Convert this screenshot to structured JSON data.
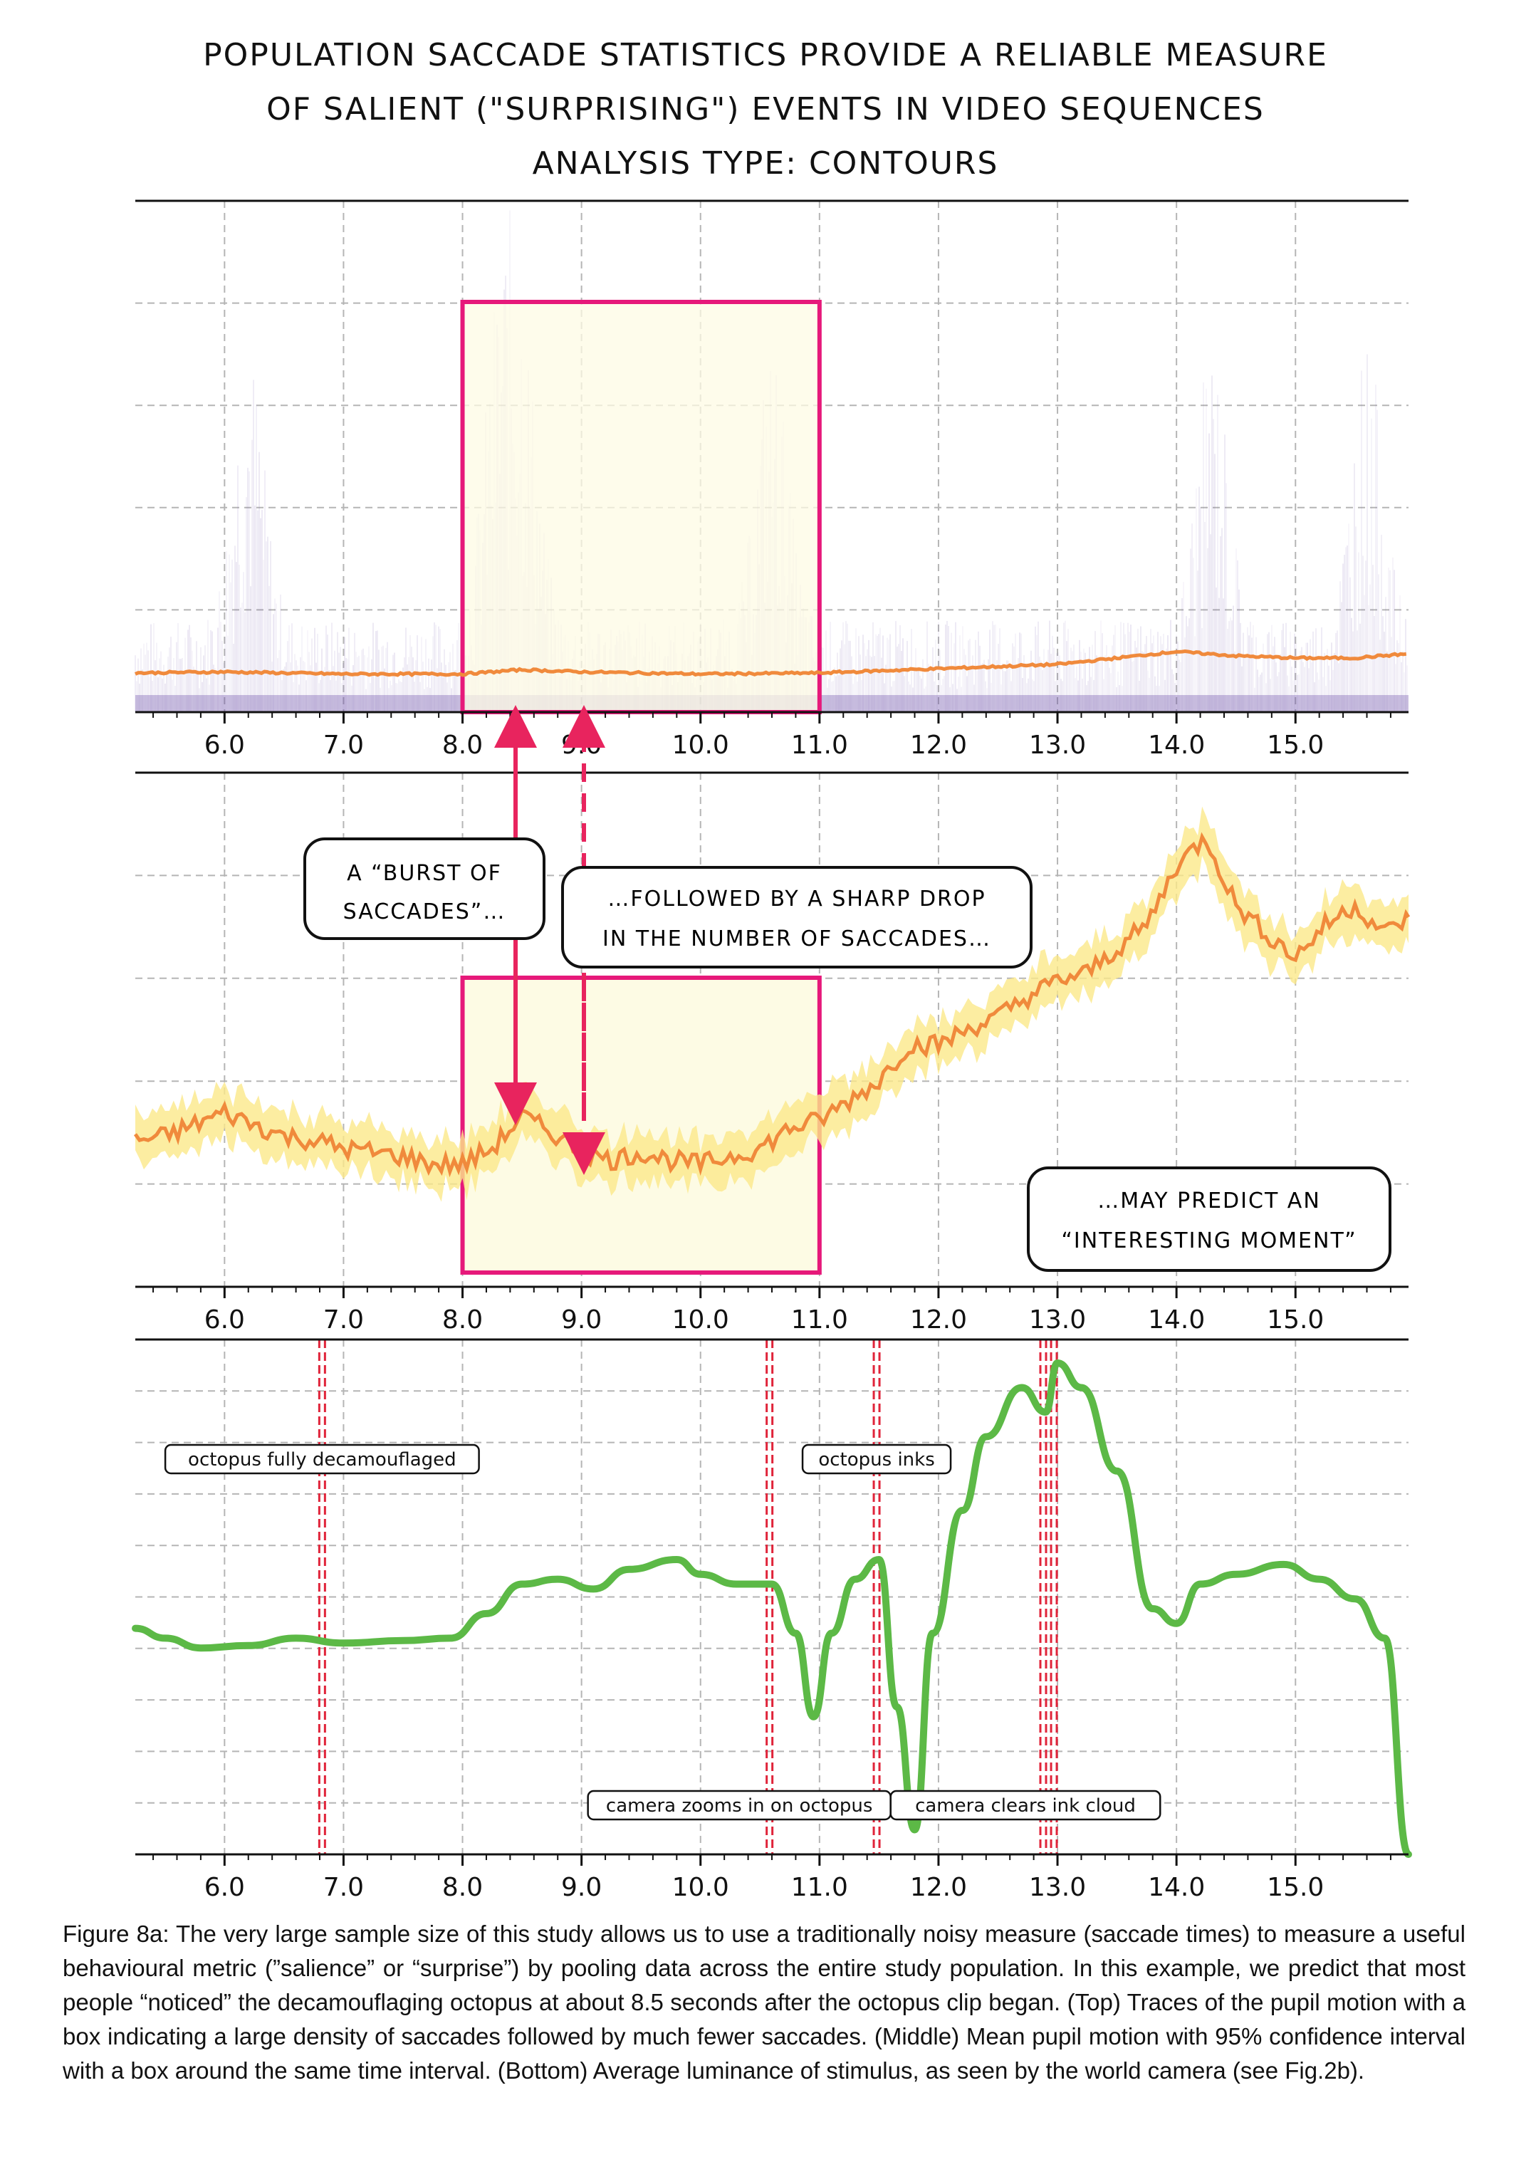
{
  "title": {
    "line1": "Population saccade statistics provide a reliable measure",
    "line2": "of salient (\"surprising\") events in video sequences",
    "line3": "Analysis type: contours"
  },
  "callouts": {
    "burst_line1": "A “BURST OF",
    "burst_line2": "SACCADES”…",
    "drop_line1": "…FOLLOWED BY A SHARP DROP",
    "drop_line2": "IN THE NUMBER OF SACCADES…",
    "predict_line1": "…MAY PREDICT AN",
    "predict_line2": "“INTERESTING MOMENT”"
  },
  "caption": "Figure 8a: The very large sample size of this study allows us to use a traditionally noisy measure (saccade times) to measure a useful behavioural metric (”salience” or “surprise”) by pooling data across the entire study population. In this example, we predict that most people “noticed” the decamouflaging octopus at about 8.5 seconds after the octopus clip began. (Top) Traces of the pupil motion with a box indicating a large density of saccades followed by much fewer saccades. (Middle) Mean pupil motion with 95% confidence interval with a box around the same time interval.  (Bottom) Average luminance of stimulus, as seen by the world camera (see Fig.2b).",
  "colors": {
    "accent_box": "#e6197a",
    "box_fill": "#fdfbe4",
    "orange_line": "#f08a3c",
    "ci_band": "#fbe98a",
    "luminance_line": "#5cb946",
    "event_line": "#e0243a",
    "trace_purple": "#6c4fa8",
    "arrow": "#e8245e"
  },
  "chart_data": [
    {
      "type": "heatmap",
      "name": "top-pupil-motion-traces",
      "xlim": [
        5.25,
        15.95
      ],
      "x_ticks": [
        "6.0",
        "7.0",
        "8.0",
        "9.0",
        "10.0",
        "11.0",
        "12.0",
        "13.0",
        "14.0",
        "15.0"
      ],
      "grid": true,
      "highlight_box": {
        "x_start": 8.0,
        "x_end": 11.0
      },
      "orange_mean": {
        "x": [
          5.25,
          6.0,
          7.0,
          8.0,
          8.5,
          9.0,
          10.0,
          11.0,
          12.0,
          13.0,
          13.5,
          14.0,
          14.5,
          15.0,
          15.5,
          15.95
        ],
        "y": [
          0.05,
          0.055,
          0.045,
          0.045,
          0.065,
          0.055,
          0.045,
          0.05,
          0.07,
          0.09,
          0.12,
          0.15,
          0.13,
          0.12,
          0.12,
          0.14
        ]
      },
      "density_peaks": [
        6.2,
        8.3,
        8.5,
        10.6,
        14.3,
        15.6
      ]
    },
    {
      "type": "line",
      "name": "middle-mean-pupil-motion",
      "xlim": [
        5.25,
        15.95
      ],
      "x_ticks": [
        "6.0",
        "7.0",
        "8.0",
        "9.0",
        "10.0",
        "11.0",
        "12.0",
        "13.0",
        "14.0",
        "15.0"
      ],
      "grid": true,
      "highlight_box": {
        "x_start": 8.0,
        "x_end": 11.0
      },
      "series": [
        {
          "x": [
            5.25,
            5.5,
            5.75,
            6.0,
            6.25,
            6.5,
            6.75,
            7.0,
            7.25,
            7.5,
            7.75,
            8.0,
            8.25,
            8.5,
            8.75,
            9.0,
            9.25,
            9.5,
            9.75,
            10.0,
            10.25,
            10.5,
            10.75,
            11.0,
            11.25,
            11.5,
            11.75,
            12.0,
            12.25,
            12.5,
            12.75,
            13.0,
            13.25,
            13.5,
            13.75,
            14.0,
            14.25,
            14.5,
            14.75,
            15.0,
            15.25,
            15.5,
            15.75,
            15.95
          ],
          "y": [
            0.26,
            0.27,
            0.3,
            0.33,
            0.3,
            0.27,
            0.26,
            0.24,
            0.23,
            0.22,
            0.2,
            0.2,
            0.24,
            0.32,
            0.28,
            0.23,
            0.21,
            0.23,
            0.21,
            0.2,
            0.22,
            0.24,
            0.29,
            0.31,
            0.36,
            0.41,
            0.5,
            0.5,
            0.54,
            0.57,
            0.62,
            0.66,
            0.68,
            0.74,
            0.8,
            0.95,
            1.02,
            0.85,
            0.78,
            0.72,
            0.8,
            0.85,
            0.78,
            0.82
          ],
          "ci": 0.06
        }
      ]
    },
    {
      "type": "line",
      "name": "bottom-average-luminance",
      "xlim": [
        5.25,
        15.95
      ],
      "x_ticks": [
        "6.0",
        "7.0",
        "8.0",
        "9.0",
        "10.0",
        "11.0",
        "12.0",
        "13.0",
        "14.0",
        "15.0"
      ],
      "grid": true,
      "series": [
        {
          "x": [
            5.25,
            5.5,
            5.8,
            6.2,
            6.6,
            7.0,
            7.5,
            7.9,
            8.2,
            8.5,
            8.8,
            9.1,
            9.4,
            9.8,
            10.0,
            10.3,
            10.6,
            10.8,
            10.95,
            11.1,
            11.3,
            11.5,
            11.65,
            11.8,
            11.95,
            12.2,
            12.4,
            12.7,
            12.9,
            13.0,
            13.2,
            13.5,
            13.8,
            14.0,
            14.2,
            14.5,
            14.9,
            15.2,
            15.5,
            15.75,
            15.95
          ],
          "y": [
            0.46,
            0.44,
            0.42,
            0.425,
            0.44,
            0.43,
            0.435,
            0.44,
            0.49,
            0.55,
            0.56,
            0.54,
            0.58,
            0.6,
            0.57,
            0.55,
            0.55,
            0.45,
            0.28,
            0.45,
            0.56,
            0.6,
            0.3,
            0.05,
            0.45,
            0.7,
            0.85,
            0.95,
            0.9,
            1.0,
            0.95,
            0.78,
            0.5,
            0.47,
            0.55,
            0.57,
            0.59,
            0.56,
            0.52,
            0.44,
            0.0
          ]
        }
      ],
      "events": [
        {
          "x": 6.82,
          "label": "octopus fully decamouflaged"
        },
        {
          "x": 10.58,
          "label": "camera zooms in on octopus"
        },
        {
          "x": 11.48,
          "label": "octopus inks"
        },
        {
          "x": 12.88,
          "label": "camera clears ink cloud"
        },
        {
          "x": 12.97,
          "label": ""
        }
      ]
    }
  ]
}
